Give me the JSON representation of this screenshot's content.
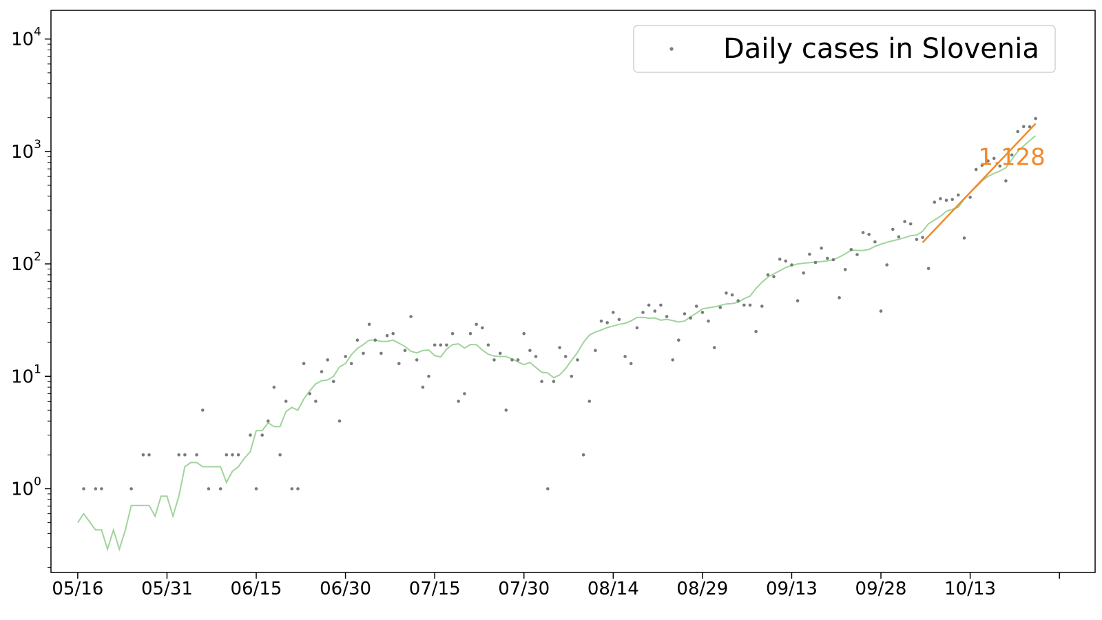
{
  "chart_data": {
    "type": "scatter",
    "title": "",
    "xlabel": "",
    "ylabel": "",
    "yscale": "log",
    "ylim": [
      0.18,
      18000
    ],
    "xlim_day": [
      -4.5,
      171
    ],
    "start_date": "05/16",
    "x_ticks": [
      "05/16",
      "05/31",
      "06/15",
      "06/30",
      "07/15",
      "07/30",
      "08/14",
      "08/29",
      "09/13",
      "09/28",
      "10/13",
      ""
    ],
    "y_ticks": [
      {
        "base": "10",
        "exp": "0",
        "value": 1
      },
      {
        "base": "10",
        "exp": "1",
        "value": 10
      },
      {
        "base": "10",
        "exp": "2",
        "value": 100
      },
      {
        "base": "10",
        "exp": "3",
        "value": 1000
      },
      {
        "base": "10",
        "exp": "4",
        "value": 10000
      }
    ],
    "legend": {
      "label": "Daily cases in Slovenia",
      "position": "top-right"
    },
    "grid": false,
    "colors": {
      "points": "#7a7a7a",
      "smooth": "#9fd49b",
      "fit": "#f08a2a"
    },
    "series": [
      {
        "name": "Daily cases in Slovenia",
        "kind": "points",
        "points": [
          [
            1,
            1
          ],
          [
            3,
            1
          ],
          [
            4,
            1
          ],
          [
            9,
            1
          ],
          [
            11,
            2
          ],
          [
            12,
            2
          ],
          [
            17,
            2
          ],
          [
            18,
            2
          ],
          [
            20,
            2
          ],
          [
            21,
            5
          ],
          [
            22,
            1
          ],
          [
            24,
            1
          ],
          [
            25,
            2
          ],
          [
            26,
            2
          ],
          [
            27,
            2
          ],
          [
            29,
            3
          ],
          [
            30,
            1
          ],
          [
            31,
            3
          ],
          [
            32,
            4
          ],
          [
            33,
            8
          ],
          [
            34,
            2
          ],
          [
            35,
            6
          ],
          [
            36,
            1
          ],
          [
            37,
            1
          ],
          [
            38,
            13
          ],
          [
            39,
            7
          ],
          [
            40,
            6
          ],
          [
            41,
            11
          ],
          [
            42,
            14
          ],
          [
            43,
            9
          ],
          [
            44,
            4
          ],
          [
            45,
            15
          ],
          [
            46,
            13
          ],
          [
            47,
            21
          ],
          [
            48,
            16
          ],
          [
            49,
            29
          ],
          [
            50,
            21
          ],
          [
            51,
            16
          ],
          [
            52,
            23
          ],
          [
            53,
            24
          ],
          [
            54,
            13
          ],
          [
            55,
            17
          ],
          [
            56,
            34
          ],
          [
            57,
            14
          ],
          [
            58,
            8
          ],
          [
            59,
            10
          ],
          [
            60,
            19
          ],
          [
            61,
            19
          ],
          [
            62,
            19
          ],
          [
            63,
            24
          ],
          [
            64,
            6
          ],
          [
            65,
            7
          ],
          [
            66,
            24
          ],
          [
            67,
            29
          ],
          [
            68,
            27
          ],
          [
            69,
            19
          ],
          [
            70,
            14
          ],
          [
            71,
            16
          ],
          [
            72,
            5
          ],
          [
            73,
            14
          ],
          [
            74,
            14
          ],
          [
            75,
            24
          ],
          [
            76,
            17
          ],
          [
            77,
            15
          ],
          [
            78,
            9
          ],
          [
            79,
            1
          ],
          [
            80,
            9
          ],
          [
            81,
            18
          ],
          [
            82,
            15
          ],
          [
            83,
            10
          ],
          [
            84,
            14
          ],
          [
            85,
            2
          ],
          [
            86,
            6
          ],
          [
            87,
            17
          ],
          [
            88,
            31
          ],
          [
            89,
            30
          ],
          [
            90,
            37
          ],
          [
            91,
            32
          ],
          [
            92,
            15
          ],
          [
            93,
            13
          ],
          [
            94,
            27
          ],
          [
            95,
            37
          ],
          [
            96,
            43
          ],
          [
            97,
            38
          ],
          [
            98,
            43
          ],
          [
            99,
            34
          ],
          [
            100,
            14
          ],
          [
            101,
            21
          ],
          [
            102,
            36
          ],
          [
            103,
            33
          ],
          [
            104,
            42
          ],
          [
            105,
            37
          ],
          [
            106,
            31
          ],
          [
            107,
            18
          ],
          [
            108,
            41
          ],
          [
            109,
            55
          ],
          [
            110,
            53
          ],
          [
            111,
            47
          ],
          [
            112,
            43
          ],
          [
            113,
            43
          ],
          [
            114,
            25
          ],
          [
            115,
            42
          ],
          [
            116,
            80
          ],
          [
            117,
            77
          ],
          [
            118,
            110
          ],
          [
            119,
            106
          ],
          [
            120,
            98
          ],
          [
            121,
            47
          ],
          [
            122,
            83
          ],
          [
            123,
            122
          ],
          [
            124,
            103
          ],
          [
            125,
            138
          ],
          [
            126,
            112
          ],
          [
            127,
            109
          ],
          [
            128,
            50
          ],
          [
            129,
            89
          ],
          [
            130,
            134
          ],
          [
            131,
            121
          ],
          [
            132,
            190
          ],
          [
            133,
            183
          ],
          [
            134,
            157
          ],
          [
            135,
            38
          ],
          [
            136,
            98
          ],
          [
            137,
            203
          ],
          [
            138,
            174
          ],
          [
            139,
            238
          ],
          [
            140,
            227
          ],
          [
            141,
            165
          ],
          [
            142,
            172
          ],
          [
            143,
            91
          ],
          [
            144,
            354
          ],
          [
            145,
            380
          ],
          [
            146,
            368
          ],
          [
            147,
            374
          ],
          [
            148,
            410
          ],
          [
            149,
            170
          ],
          [
            150,
            391
          ],
          [
            151,
            691
          ],
          [
            152,
            754
          ],
          [
            153,
            824
          ],
          [
            154,
            868
          ],
          [
            155,
            741
          ],
          [
            156,
            548
          ],
          [
            157,
            932
          ],
          [
            158,
            1503
          ],
          [
            159,
            1663
          ],
          [
            160,
            1656
          ],
          [
            161,
            1961
          ]
        ]
      },
      {
        "name": "",
        "kind": "smooth",
        "points": [
          [
            0,
            0.5
          ],
          [
            1,
            0.6
          ],
          [
            3,
            0.43
          ],
          [
            4,
            0.43
          ],
          [
            5,
            0.29
          ],
          [
            6,
            0.43
          ],
          [
            7,
            0.29
          ],
          [
            8,
            0.43
          ],
          [
            9,
            0.71
          ],
          [
            12,
            0.71
          ],
          [
            13,
            0.57
          ],
          [
            14,
            0.86
          ],
          [
            15,
            0.86
          ],
          [
            16,
            0.57
          ],
          [
            17,
            0.86
          ],
          [
            18,
            1.57
          ],
          [
            19,
            1.71
          ],
          [
            20,
            1.71
          ],
          [
            21,
            1.57
          ],
          [
            24,
            1.57
          ],
          [
            25,
            1.14
          ],
          [
            26,
            1.43
          ],
          [
            27,
            1.57
          ],
          [
            28,
            1.86
          ],
          [
            29,
            2.14
          ],
          [
            30,
            3.29
          ],
          [
            31,
            3.29
          ],
          [
            32,
            3.86
          ],
          [
            33,
            3.57
          ],
          [
            34,
            3.57
          ],
          [
            35,
            4.86
          ],
          [
            36,
            5.29
          ],
          [
            37,
            5.0
          ],
          [
            38,
            6.29
          ],
          [
            39,
            7.43
          ],
          [
            40,
            8.57
          ],
          [
            41,
            9.14
          ],
          [
            42,
            9.29
          ],
          [
            43,
            10.0
          ],
          [
            44,
            12.14
          ],
          [
            45,
            13.0
          ],
          [
            46,
            15.57
          ],
          [
            47,
            17.71
          ],
          [
            48,
            19.14
          ],
          [
            49,
            21.0
          ],
          [
            50,
            21.0
          ],
          [
            51,
            20.43
          ],
          [
            52,
            20.43
          ],
          [
            53,
            21.0
          ],
          [
            54,
            19.71
          ],
          [
            55,
            18.43
          ],
          [
            56,
            16.71
          ],
          [
            57,
            16.14
          ],
          [
            58,
            17.0
          ],
          [
            59,
            17.14
          ],
          [
            60,
            15.29
          ],
          [
            61,
            14.86
          ],
          [
            62,
            17.43
          ],
          [
            63,
            19.14
          ],
          [
            64,
            19.43
          ],
          [
            65,
            17.86
          ],
          [
            66,
            19.14
          ],
          [
            67,
            19.14
          ],
          [
            68,
            17.14
          ],
          [
            69,
            15.71
          ],
          [
            70,
            15.14
          ],
          [
            71,
            15.0
          ],
          [
            72,
            15.0
          ],
          [
            73,
            14.29
          ],
          [
            74,
            13.43
          ],
          [
            75,
            12.71
          ],
          [
            76,
            13.29
          ],
          [
            77,
            12.0
          ],
          [
            78,
            10.86
          ],
          [
            79,
            10.71
          ],
          [
            80,
            9.71
          ],
          [
            81,
            10.29
          ],
          [
            82,
            11.71
          ],
          [
            83,
            13.86
          ],
          [
            84,
            16.29
          ],
          [
            85,
            20.0
          ],
          [
            86,
            23.29
          ],
          [
            87,
            24.71
          ],
          [
            88,
            25.86
          ],
          [
            89,
            27.14
          ],
          [
            90,
            28.0
          ],
          [
            91,
            29.0
          ],
          [
            92,
            29.57
          ],
          [
            93,
            31.14
          ],
          [
            94,
            33.43
          ],
          [
            95,
            33.43
          ],
          [
            96,
            32.86
          ],
          [
            97,
            33.0
          ],
          [
            98,
            31.57
          ],
          [
            99,
            32.14
          ],
          [
            100,
            31.29
          ],
          [
            101,
            30.43
          ],
          [
            102,
            31.0
          ],
          [
            103,
            33.86
          ],
          [
            104,
            36.43
          ],
          [
            105,
            39.86
          ],
          [
            106,
            40.71
          ],
          [
            107,
            41.43
          ],
          [
            108,
            42.71
          ],
          [
            109,
            44.0
          ],
          [
            110,
            44.43
          ],
          [
            111,
            45.57
          ],
          [
            112,
            49.0
          ],
          [
            113,
            51.71
          ],
          [
            114,
            60.43
          ],
          [
            115,
            68.71
          ],
          [
            116,
            76.43
          ],
          [
            117,
            81.43
          ],
          [
            118,
            86.86
          ],
          [
            119,
            92.86
          ],
          [
            120,
            96.71
          ],
          [
            121,
            100.0
          ],
          [
            122,
            101.43
          ],
          [
            123,
            102.71
          ],
          [
            124,
            104.14
          ],
          [
            125,
            104.71
          ],
          [
            126,
            106.57
          ],
          [
            127,
            108.86
          ],
          [
            128,
            115.14
          ],
          [
            129,
            122.86
          ],
          [
            130,
            132.57
          ],
          [
            131,
            131.71
          ],
          [
            132,
            131.57
          ],
          [
            133,
            134.57
          ],
          [
            134,
            143.29
          ],
          [
            135,
            149.57
          ],
          [
            136,
            155.71
          ],
          [
            137,
            160.57
          ],
          [
            138,
            165.43
          ],
          [
            139,
            171.29
          ],
          [
            140,
            178.14
          ],
          [
            141,
            180.43
          ],
          [
            142,
            194.71
          ],
          [
            143,
            227.43
          ],
          [
            144,
            245.43
          ],
          [
            145,
            265.43
          ],
          [
            146,
            293.71
          ],
          [
            147,
            306.14
          ],
          [
            148,
            318.57
          ],
          [
            149,
            376.0
          ],
          [
            150,
            430.86
          ],
          [
            151,
            483.43
          ],
          [
            152,
            546.43
          ],
          [
            153,
            600.29
          ],
          [
            154,
            636.71
          ],
          [
            155,
            670.43
          ],
          [
            156,
            716.71
          ],
          [
            157,
            849.43
          ],
          [
            158,
            1000.29
          ],
          [
            159,
            1121.0
          ],
          [
            160,
            1249.29
          ],
          [
            161,
            1381.29
          ]
        ]
      },
      {
        "name": "",
        "kind": "fit",
        "label": "1.128",
        "points": [
          [
            142,
            155
          ],
          [
            161,
            1770
          ]
        ]
      }
    ]
  }
}
